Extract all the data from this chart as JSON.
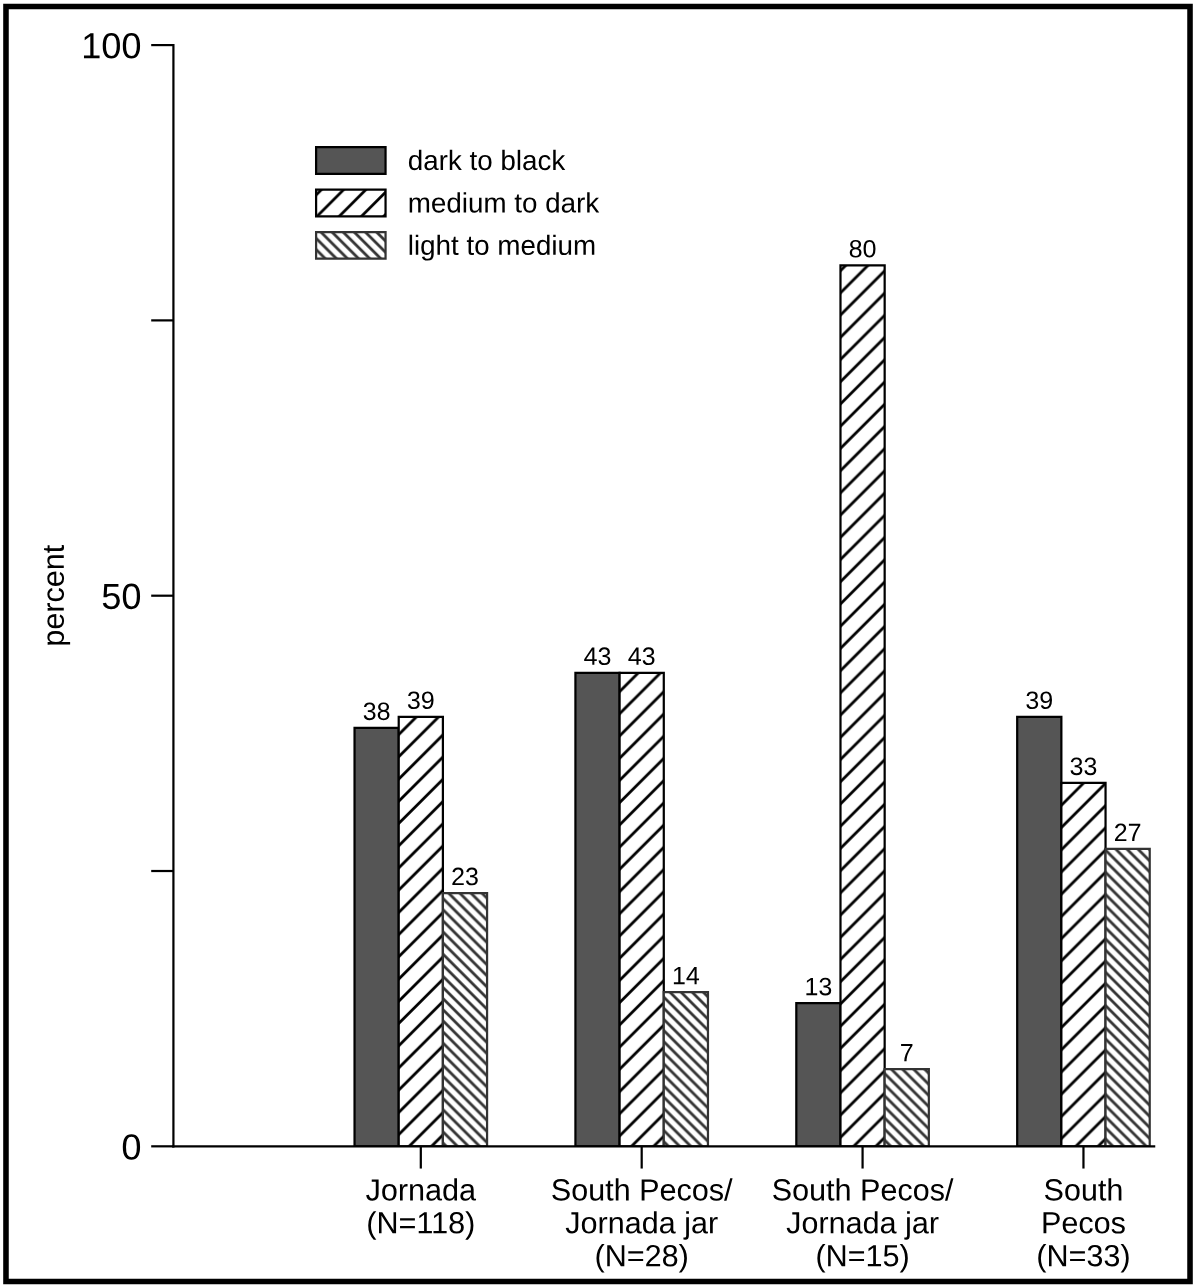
{
  "chart_data": {
    "type": "bar",
    "ylabel": "percent",
    "categories": [
      "Jornada\n(N=118)",
      "South Pecos/\nJornada jar\n(N=28)",
      "South Pecos/\nJornada jar\n(N=15)",
      "South\nPecos\n(N=33)"
    ],
    "series": [
      {
        "name": "dark to black",
        "color": "#555555",
        "values": [
          38,
          43,
          13,
          39
        ]
      },
      {
        "name": "medium to dark",
        "color": "#000000",
        "values": [
          39,
          43,
          80,
          33
        ]
      },
      {
        "name": "light to medium",
        "color": "#333333",
        "values": [
          23,
          14,
          7,
          27
        ]
      }
    ],
    "ylim": [
      0,
      100
    ],
    "yticks": [
      0,
      {
        "value": 25,
        "label": null
      },
      50,
      {
        "value": 75,
        "label": null
      },
      100
    ],
    "data_labels": true,
    "legend": "top left",
    "grid": false
  }
}
